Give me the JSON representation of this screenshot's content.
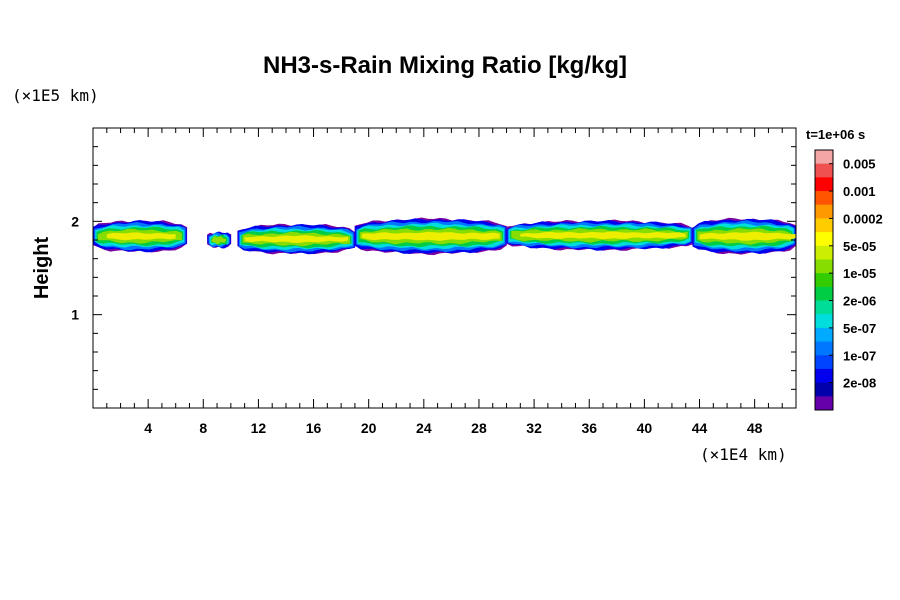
{
  "chart_data": {
    "type": "heatmap",
    "title": "NH3-s-Rain Mixing Ratio [kg/kg]",
    "ylabel": "Height",
    "xlabel": "",
    "x_unit": "(×1E4 km)",
    "y_unit": "(×1E5 km)",
    "time_label": "t=1e+06 s",
    "xlim": [
      0,
      51
    ],
    "ylim": [
      0,
      3
    ],
    "x_ticks": [
      "4",
      "8",
      "12",
      "16",
      "20",
      "24",
      "28",
      "32",
      "36",
      "40",
      "44",
      "48"
    ],
    "x_tick_values": [
      4,
      8,
      12,
      16,
      20,
      24,
      28,
      32,
      36,
      40,
      44,
      48
    ],
    "y_ticks": [
      "1",
      "2"
    ],
    "y_tick_values": [
      1,
      2
    ],
    "colorbar": {
      "labels": [
        "0.005",
        "0.001",
        "0.0002",
        "5e-05",
        "1e-05",
        "2e-06",
        "5e-07",
        "1e-07",
        "2e-08"
      ],
      "colors": [
        "#f4a6a6",
        "#ef5050",
        "#ff0000",
        "#ff5500",
        "#ff9900",
        "#ffcc00",
        "#ffff00",
        "#ccee00",
        "#88dd00",
        "#33cc00",
        "#00cc44",
        "#00dd99",
        "#00dddd",
        "#00aaff",
        "#0077ff",
        "#0044ff",
        "#0000ee",
        "#0000aa",
        "#6600aa"
      ]
    },
    "cloud_segments": [
      {
        "x0": 0.0,
        "x1": 6.8,
        "y_bottom": 1.68,
        "y_top": 2.0,
        "core_x0": 1.0,
        "core_x1": 6.0,
        "core_level": "yellow"
      },
      {
        "x0": 8.3,
        "x1": 10.0,
        "y_bottom": 1.72,
        "y_top": 1.88,
        "core_x0": 8.6,
        "core_x1": 9.6,
        "core_level": "green"
      },
      {
        "x0": 10.5,
        "x1": 19.0,
        "y_bottom": 1.66,
        "y_top": 1.96,
        "core_x0": 11.0,
        "core_x1": 18.5,
        "core_level": "yellow"
      },
      {
        "x0": 19.0,
        "x1": 30.0,
        "y_bottom": 1.66,
        "y_top": 2.02,
        "core_x0": 19.5,
        "core_x1": 29.5,
        "core_level": "yellow"
      },
      {
        "x0": 30.0,
        "x1": 43.5,
        "y_bottom": 1.7,
        "y_top": 2.0,
        "core_x0": 31.0,
        "core_x1": 43.0,
        "core_level": "yellow"
      },
      {
        "x0": 43.5,
        "x1": 51.0,
        "y_bottom": 1.66,
        "y_top": 2.02,
        "core_x0": 44.0,
        "core_x1": 51.0,
        "core_level": "yellow"
      }
    ]
  }
}
